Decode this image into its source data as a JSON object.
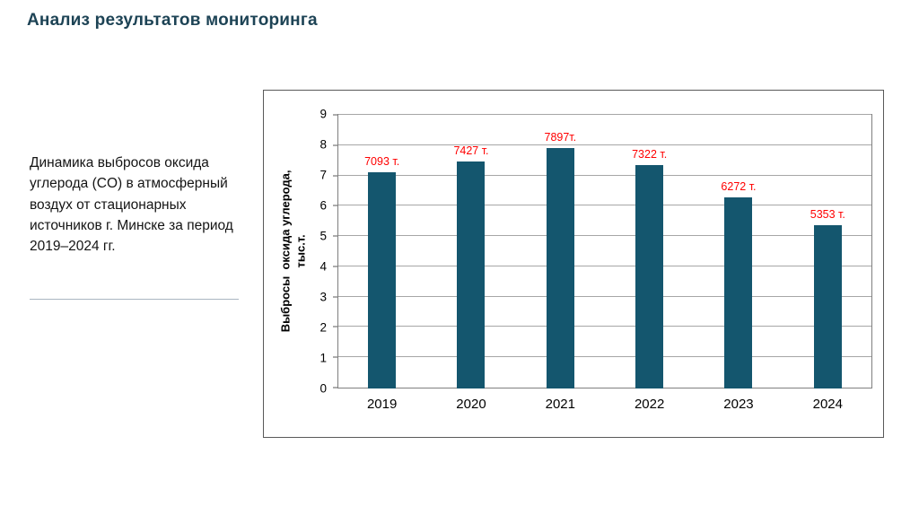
{
  "slide": {
    "title": "Анализ результатов мониторинга",
    "description": "Динамика выбросов оксида углерода (CO) в атмосферный воздух от стационарных источников г. Минске за период 2019–2024 гг."
  },
  "chart_data": {
    "type": "bar",
    "title": "",
    "categories": [
      "2019",
      "2020",
      "2021",
      "2022",
      "2023",
      "2024"
    ],
    "values": [
      7.093,
      7.427,
      7.897,
      7.322,
      6.272,
      5.353
    ],
    "bar_value_labels": [
      "7093 т.",
      "7427 т.",
      "7897т.",
      "7322 т.",
      "6272 т.",
      "5353 т."
    ],
    "xlabel": "",
    "ylabel": "Выбросы  оксида углерода, тыс.т.",
    "ylabel_lines": [
      "Выбросы  оксида углерода,",
      "тыс.т."
    ],
    "ylim": [
      0,
      9
    ],
    "ytick_step": 1,
    "grid": true,
    "legend": "none",
    "bar_color": "#14566e",
    "value_label_color": "#ff0000"
  }
}
